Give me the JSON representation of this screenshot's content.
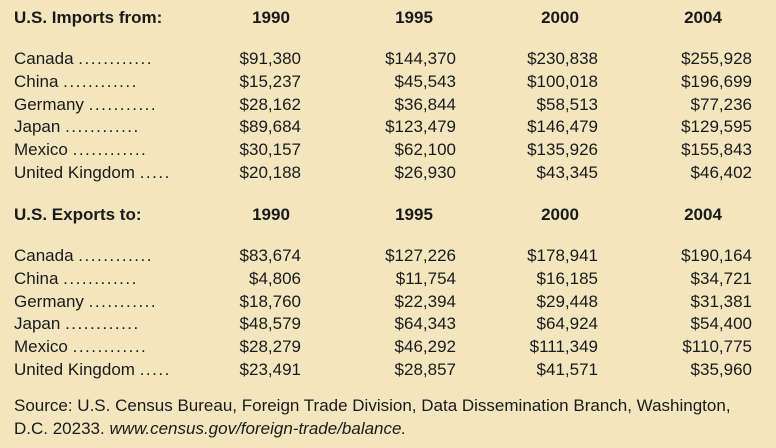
{
  "chart_data": {
    "type": "table",
    "units": "",
    "tables": [
      {
        "heading": "U.S. Imports from:",
        "columns": [
          "1990",
          "1995",
          "2000",
          "2004"
        ],
        "rows": [
          {
            "label": "Canada",
            "leader": "............",
            "values": [
              "$91,380",
              "$144,370",
              "$230,838",
              "$255,928"
            ]
          },
          {
            "label": "China",
            "leader": "............",
            "values": [
              "$15,237",
              "$45,543",
              "$100,018",
              "$196,699"
            ]
          },
          {
            "label": "Germany",
            "leader": "...........",
            "values": [
              "$28,162",
              "$36,844",
              "$58,513",
              "$77,236"
            ]
          },
          {
            "label": "Japan",
            "leader": "............",
            "values": [
              "$89,684",
              "$123,479",
              "$146,479",
              "$129,595"
            ]
          },
          {
            "label": "Mexico",
            "leader": "............",
            "values": [
              "$30,157",
              "$62,100",
              "$135,926",
              "$155,843"
            ]
          },
          {
            "label": "United Kingdom",
            "leader": ".....",
            "values": [
              "$20,188",
              "$26,930",
              "$43,345",
              "$46,402"
            ]
          }
        ]
      },
      {
        "heading": "U.S. Exports to:",
        "columns": [
          "1990",
          "1995",
          "2000",
          "2004"
        ],
        "rows": [
          {
            "label": "Canada",
            "leader": "............",
            "values": [
              "$83,674",
              "$127,226",
              "$178,941",
              "$190,164"
            ]
          },
          {
            "label": "China",
            "leader": "............",
            "values": [
              "$4,806",
              "$11,754",
              "$16,185",
              "$34,721"
            ]
          },
          {
            "label": "Germany",
            "leader": "...........",
            "values": [
              "$18,760",
              "$22,394",
              "$29,448",
              "$31,381"
            ]
          },
          {
            "label": "Japan",
            "leader": "............",
            "values": [
              "$48,579",
              "$64,343",
              "$64,924",
              "$54,400"
            ]
          },
          {
            "label": "Mexico",
            "leader": "............",
            "values": [
              "$28,279",
              "$46,292",
              "$111,349",
              "$110,775"
            ]
          },
          {
            "label": "United Kingdom",
            "leader": ".....",
            "values": [
              "$23,491",
              "$28,857",
              "$41,571",
              "$35,960"
            ]
          }
        ]
      }
    ]
  },
  "source": {
    "text": "Source: U.S. Census Bureau, Foreign Trade Division, Data Dissemination Branch, Washington, D.C. 20233.",
    "url": "www.census.gov/foreign-trade/balance."
  },
  "colors": {
    "background": "#f3e6bf",
    "text": "#1a1a1a"
  }
}
